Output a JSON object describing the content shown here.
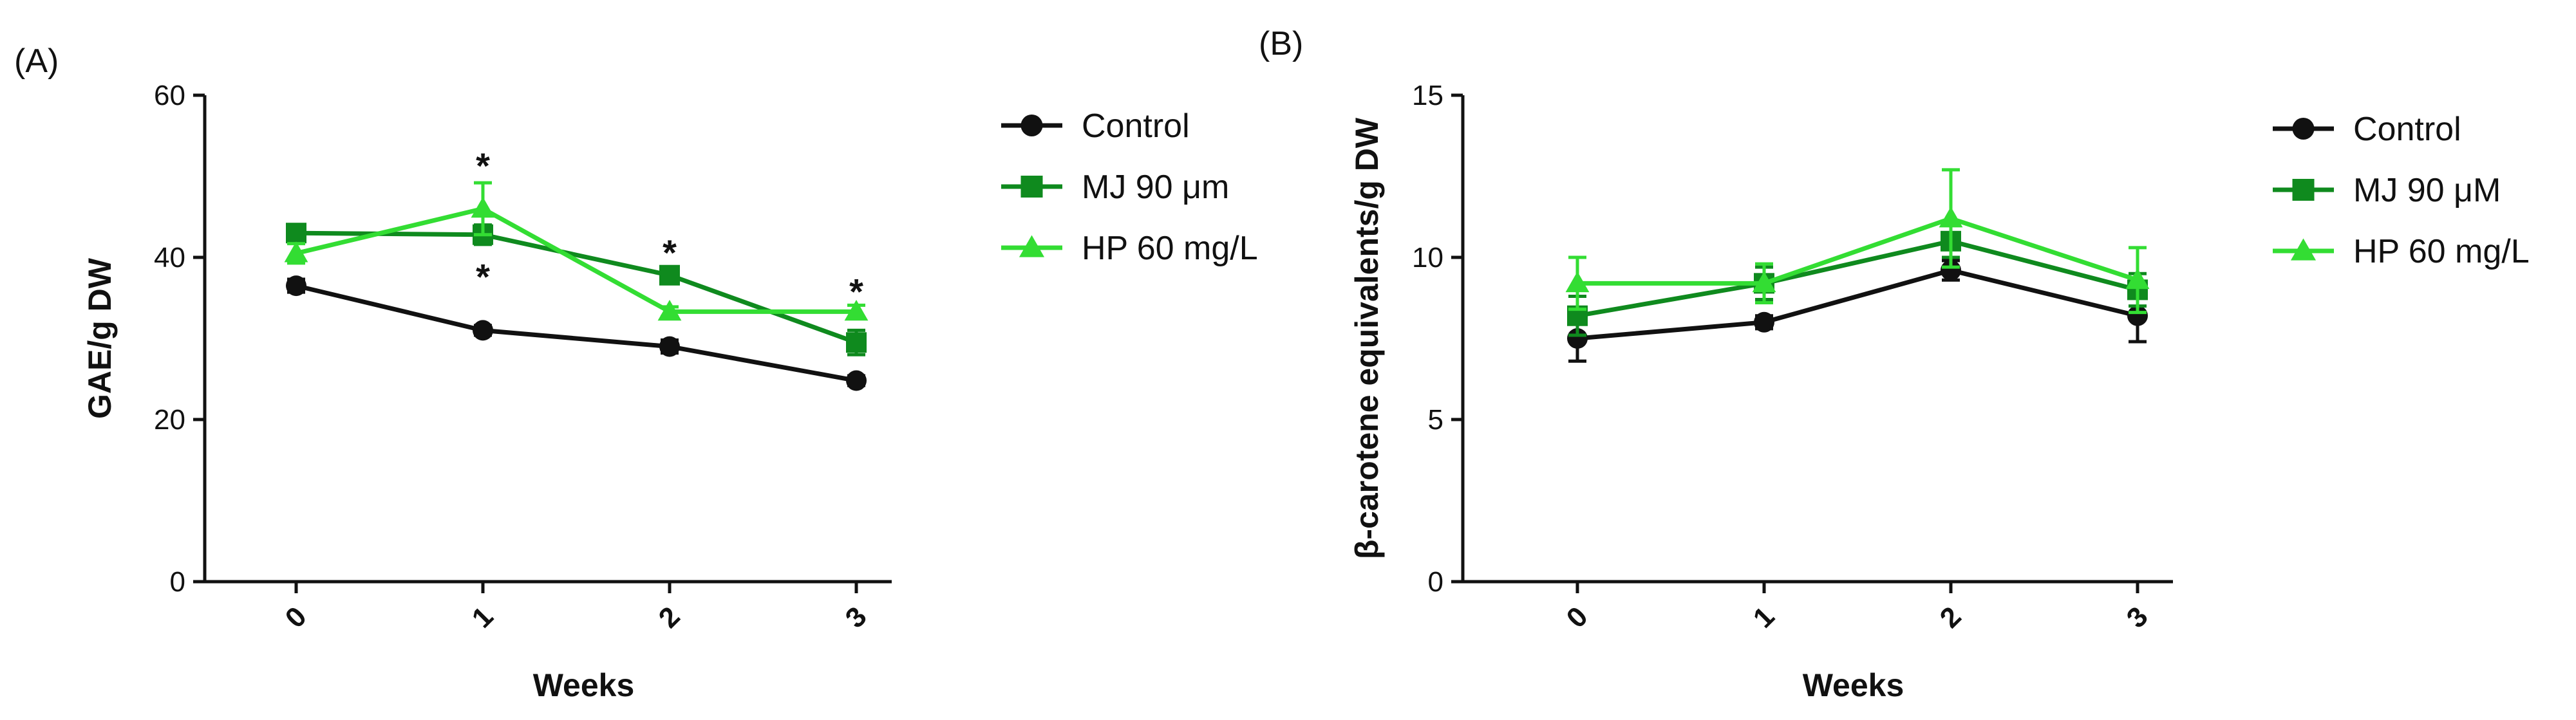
{
  "chart_data": [
    {
      "panel_label": "(A)",
      "type": "line",
      "xlabel": "Weeks",
      "ylabel": "GAE/g DW",
      "ylim": [
        0,
        60
      ],
      "yticks": [
        0,
        20,
        40,
        60
      ],
      "categories": [
        "0",
        "1",
        "2",
        "3"
      ],
      "legend_position": "right",
      "series": [
        {
          "name": "Control",
          "color": "#111111",
          "marker": "circle",
          "values": [
            36.5,
            31.0,
            29.0,
            24.8
          ],
          "errors": [
            0.8,
            0.6,
            0.8,
            0.6
          ]
        },
        {
          "name": "MJ 90 μm",
          "color": "#0f8a1e",
          "marker": "square",
          "values": [
            43.0,
            42.8,
            37.8,
            29.5
          ],
          "errors": [
            0.8,
            1.2,
            1.0,
            1.5
          ]
        },
        {
          "name": "HP 60 mg/L",
          "color": "#33dd33",
          "marker": "triangle",
          "values": [
            40.5,
            46.0,
            33.3,
            33.3
          ],
          "errors": [
            1.2,
            3.2,
            0.6,
            0.8
          ]
        }
      ],
      "annotations": [
        {
          "text": "*",
          "x": "1",
          "y": 51.5
        },
        {
          "text": "*",
          "x": "1",
          "y": 37.8
        },
        {
          "text": "*",
          "x": "2",
          "y": 40.8
        },
        {
          "text": "*",
          "x": "3",
          "y": 36.0
        }
      ]
    },
    {
      "panel_label": "(B)",
      "type": "line",
      "xlabel": "Weeks",
      "ylabel": "β-carotene equivalents/g DW",
      "ylim": [
        0,
        15
      ],
      "yticks": [
        0,
        5,
        10,
        15
      ],
      "categories": [
        "0",
        "1",
        "2",
        "3"
      ],
      "legend_position": "right",
      "series": [
        {
          "name": "Control",
          "color": "#111111",
          "marker": "circle",
          "values": [
            7.5,
            8.0,
            9.6,
            8.2
          ],
          "errors": [
            0.7,
            0.2,
            0.3,
            0.8
          ]
        },
        {
          "name": "MJ 90 μM",
          "color": "#0f8a1e",
          "marker": "square",
          "values": [
            8.2,
            9.2,
            10.5,
            9.0
          ],
          "errors": [
            0.6,
            0.5,
            0.5,
            0.5
          ]
        },
        {
          "name": "HP 60 mg/L",
          "color": "#33dd33",
          "marker": "triangle",
          "values": [
            9.2,
            9.2,
            11.2,
            9.3
          ],
          "errors": [
            0.8,
            0.6,
            1.5,
            1.0
          ]
        }
      ],
      "annotations": []
    }
  ]
}
